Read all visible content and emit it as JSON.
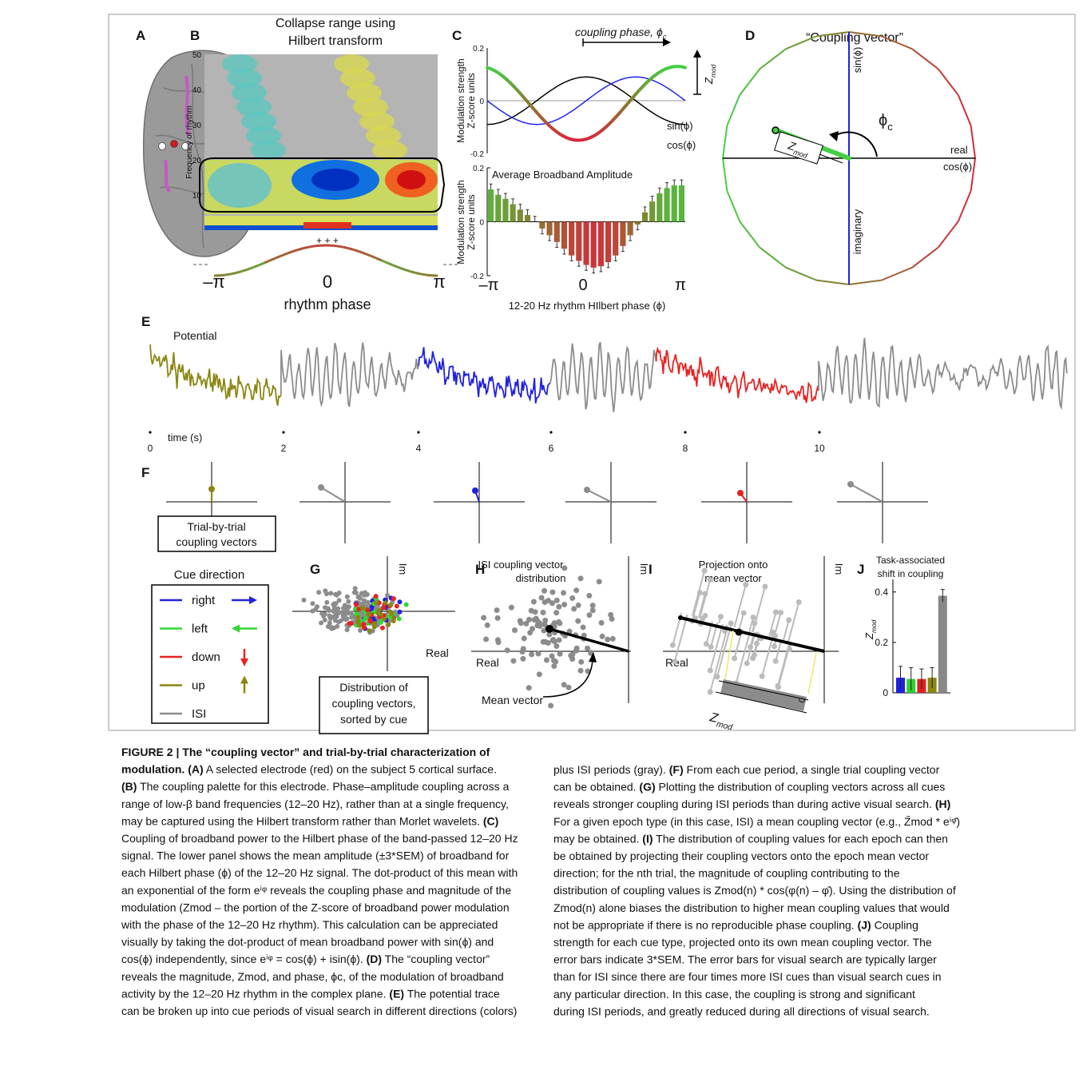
{
  "figure": {
    "panels": {
      "A": {
        "label": "A"
      },
      "B": {
        "label": "B",
        "title": [
          "Collapse range using",
          "Hilbert transform"
        ],
        "y_label": "Frequency of rhythm",
        "yticks": [
          50,
          40,
          30,
          20,
          10
        ],
        "phase_marks": "+ + +",
        "x_tick_labels": [
          "–π",
          "0",
          "π"
        ],
        "x_label": "rhythm phase"
      },
      "C": {
        "label": "C",
        "coupling_phase": [
          "coupling phase, ϕ",
          "c"
        ],
        "top": {
          "y_label": [
            "Modulation strength",
            "Z-score units"
          ],
          "yticks": [
            0.2,
            0,
            -0.2
          ],
          "sin_label": "sin(ϕ)",
          "cos_label": "cos(ϕ)",
          "zmod": [
            "Z",
            "mod"
          ]
        },
        "bottom": {
          "title": "Average Broadband Amplitude",
          "y_label": [
            "Modulation strength",
            "Z-score units"
          ],
          "ylim": [
            -0.2,
            0.2
          ],
          "yticks": [
            0.2,
            0,
            -0.2
          ],
          "values": [
            0.12,
            0.1,
            0.085,
            0.065,
            0.045,
            0.025,
            0.0,
            -0.025,
            -0.05,
            -0.075,
            -0.1,
            -0.125,
            -0.145,
            -0.16,
            -0.17,
            -0.165,
            -0.15,
            -0.125,
            -0.09,
            -0.05,
            -0.01,
            0.035,
            0.075,
            0.105,
            0.125,
            0.135,
            0.135
          ],
          "errors": [
            0.02,
            0.02,
            0.02,
            0.02,
            0.02,
            0.02,
            0.02,
            0.02,
            0.02,
            0.02,
            0.02,
            0.02,
            0.02,
            0.02,
            0.02,
            0.02,
            0.02,
            0.02,
            0.02,
            0.02,
            0.02,
            0.02,
            0.02,
            0.02,
            0.02,
            0.02,
            0.02
          ],
          "x_tick_labels": [
            "–π",
            "0",
            "π"
          ],
          "x_label": "12-20 Hz rhythm HIlbert phase (ϕ)"
        }
      },
      "D": {
        "label": "D",
        "title": "“Coupling vector”",
        "sin_label": "sin(ϕ)",
        "real_label": "real",
        "cos_label": "cos(ϕ)",
        "imag_label": "imaginary",
        "phase": [
          "ϕ",
          "c"
        ],
        "zmod": [
          "Z",
          "mod"
        ]
      },
      "E": {
        "label": "E",
        "trace_label": "Potential",
        "x_label": "time (s)",
        "xticks": [
          0,
          2,
          4,
          6,
          8,
          10
        ]
      },
      "F": {
        "label": "F",
        "box": [
          "Trial-by-trial",
          "coupling vectors"
        ]
      },
      "legend": {
        "title": "Cue direction",
        "items": [
          {
            "name": "right",
            "color": "#2222dd"
          },
          {
            "name": "left",
            "color": "#33d633"
          },
          {
            "name": "down",
            "color": "#e82222"
          },
          {
            "name": "up",
            "color": "#8a8612"
          },
          {
            "name": "ISI",
            "color": "#8c8c8c"
          }
        ]
      },
      "G": {
        "label": "G",
        "im_label": "Im",
        "real_label": "Real",
        "box": [
          "Distribution of",
          "coupling vectors,",
          "sorted by cue"
        ]
      },
      "H": {
        "label": "H",
        "title": [
          "ISI coupling vector",
          "distribution"
        ],
        "im_label": "Im",
        "real_label": "Real",
        "arrow_label": "Mean vector"
      },
      "I": {
        "label": "I",
        "title": [
          "Projection onto",
          "mean vector"
        ],
        "im_label": "Im",
        "real_label": "Real",
        "zmod": [
          "Z",
          "mod"
        ],
        "zero": "0"
      },
      "J": {
        "label": "J",
        "title": [
          "Task-associated",
          "shift in coupling"
        ],
        "y_label": [
          "Z",
          "mod"
        ],
        "ylim": [
          0,
          0.45
        ],
        "yticks": [
          0,
          0.2,
          0.4
        ],
        "values": [
          0.06,
          0.055,
          0.055,
          0.06,
          0.385
        ],
        "errors": [
          0.045,
          0.045,
          0.04,
          0.04,
          0.025
        ],
        "colors": [
          "#2020e0",
          "#30d030",
          "#e02020",
          "#8a8612",
          "#888888"
        ]
      }
    },
    "caption": {
      "left": [
        [
          {
            "b": "FIGURE 2 | The “coupling vector” and trial-by-trial characterization of"
          }
        ],
        [
          {
            "b": "modulation. (A)"
          },
          " A selected electrode (red) on the subject 5 cortical surface."
        ],
        [
          {
            "b": "(B)"
          },
          " The coupling palette for this electrode. Phase–amplitude coupling across a"
        ],
        [
          "range of low-β band frequencies (12–20 Hz), rather than at a single frequency,"
        ],
        [
          "may be captured using the Hilbert transform rather than Morlet wavelets. ",
          {
            "b": "(C)"
          }
        ],
        [
          "Coupling of broadband power to the Hilbert phase of the band-passed 12–20 Hz"
        ],
        [
          "signal. The lower panel shows the mean amplitude (±3*SEM) of broadband for"
        ],
        [
          "each Hilbert phase (ϕ) of the 12–20 Hz signal. The dot-product of this mean with"
        ],
        [
          "an exponential of the form eⁱᵠ reveals the coupling phase and magnitude of the"
        ],
        [
          "modulation (Zmod – the portion of the Z-score of broadband power modulation"
        ],
        [
          "with the phase of the 12–20 Hz rhythm). This calculation can be appreciated"
        ],
        [
          "visually by taking the dot-product of mean broadband power with sin(ϕ) and"
        ],
        [
          "cos(ϕ) independently, since eⁱᵠ = cos(ϕ) + isin(ϕ). ",
          {
            "b": "(D)"
          },
          " The “coupling vector”"
        ],
        [
          "reveals the magnitude, Zmod, and phase, ϕc, of the modulation of broadband"
        ],
        [
          "activity by the 12–20 Hz rhythm in the complex plane. ",
          {
            "b": "(E)"
          },
          " The potential trace"
        ],
        [
          "can be broken up into cue periods of visual search in different directions (colors)"
        ]
      ],
      "right": [
        [
          "plus ISI periods (gray). ",
          {
            "b": "(F)"
          },
          " From each cue period, a single trial coupling vector"
        ],
        [
          "can be obtained. ",
          {
            "b": "(G)"
          },
          " Plotting the distribution of coupling vectors across all cues"
        ],
        [
          "reveals stronger coupling during ISI periods than during active visual search. ",
          {
            "b": "(H)"
          }
        ],
        [
          "For a given epoch type (in this case, ISI) a mean coupling vector (e.g., Z̄mod * eⁱᵠ̄)"
        ],
        [
          "may be obtained. ",
          {
            "b": "(I)"
          },
          " The distribution of coupling values for each epoch can then"
        ],
        [
          "be obtained by projecting their coupling vectors onto the epoch mean vector"
        ],
        [
          "direction; for the nth trial, the magnitude of coupling contributing to the"
        ],
        [
          "distribution of coupling values is Zmod(n) * cos(φ(n) – φ̄). Using the distribution of"
        ],
        [
          "Zmod(n) alone biases the distribution to higher mean coupling values that would"
        ],
        [
          "not be appropriate if there is no reproducible phase coupling. ",
          {
            "b": "(J)"
          },
          " Coupling"
        ],
        [
          "strength for each cue type, projected onto its own mean coupling vector. The"
        ],
        [
          "error bars indicate 3*SEM. The error bars for visual search are typically larger"
        ],
        [
          "than for ISI since there are four times more ISI cues than visual search cues in"
        ],
        [
          "any particular direction. In this case, the coupling is strong and significant"
        ],
        [
          "during ISI periods, and greatly reduced during all directions of visual search."
        ]
      ]
    }
  }
}
